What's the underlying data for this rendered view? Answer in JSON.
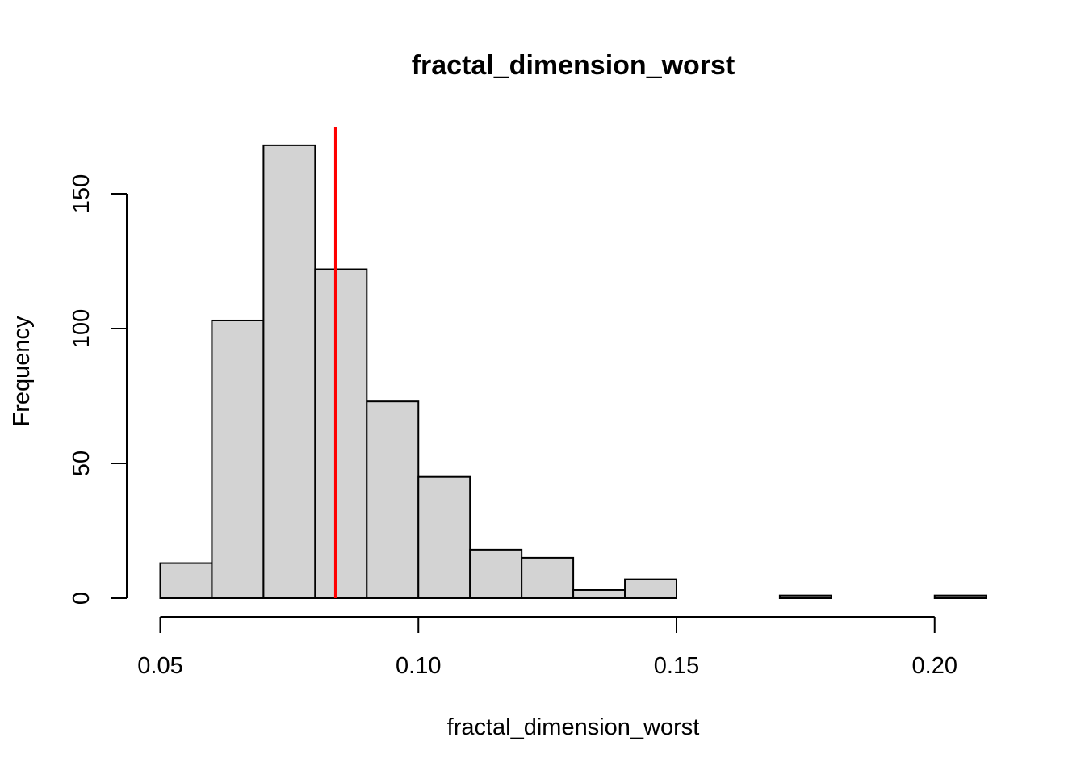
{
  "chart_data": {
    "type": "bar",
    "title": "fractal_dimension_worst",
    "xlabel": "fractal_dimension_worst",
    "ylabel": "Frequency",
    "bin_edges": [
      0.05,
      0.06,
      0.07,
      0.08,
      0.09,
      0.1,
      0.11,
      0.12,
      0.13,
      0.14,
      0.15,
      0.16,
      0.17,
      0.18,
      0.19,
      0.2,
      0.21
    ],
    "values": [
      13,
      103,
      168,
      122,
      73,
      45,
      18,
      15,
      3,
      7,
      0,
      0,
      1,
      0,
      0,
      1
    ],
    "xlim": [
      0.05,
      0.2
    ],
    "ylim": [
      0,
      150
    ],
    "x_ticks": [
      "0.05",
      "0.10",
      "0.15",
      "0.20"
    ],
    "y_ticks": [
      "0",
      "50",
      "100",
      "150"
    ],
    "vline": 0.084,
    "grid": false,
    "legend": "none",
    "colors": {
      "bar_fill": "#d3d3d3",
      "bar_stroke": "#000000",
      "vline": "#ff0000"
    }
  }
}
